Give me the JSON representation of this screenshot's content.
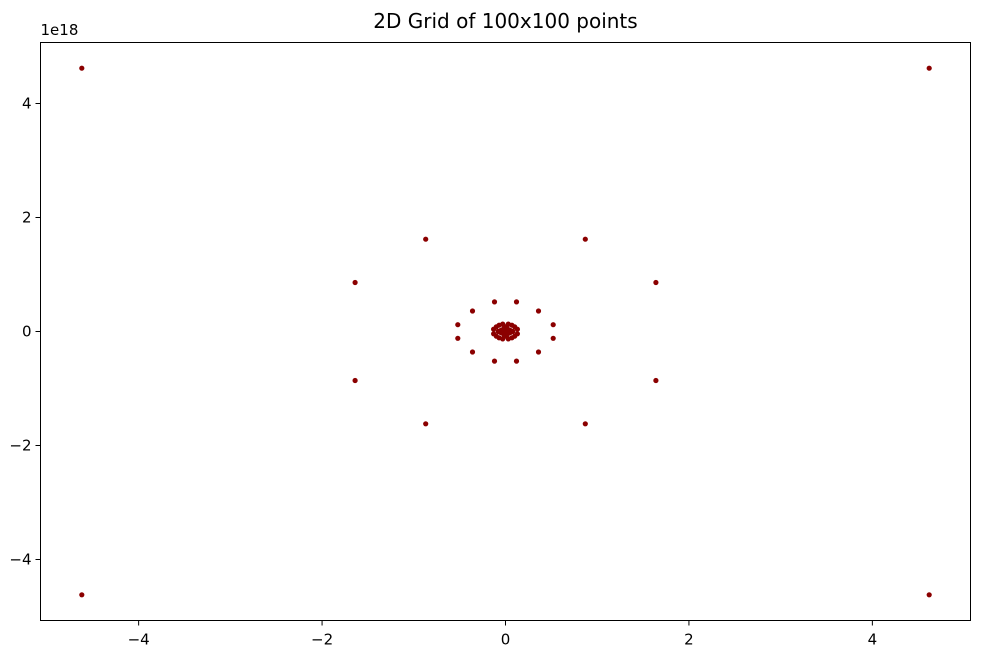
{
  "chart_data": {
    "type": "scatter",
    "title": "2D Grid of 100x100 points",
    "xlabel": "",
    "ylabel": "",
    "y_offset_label": "1e18",
    "xlim": [
      -5.07,
      5.07
    ],
    "ylim": [
      -5.07,
      5.07
    ],
    "x_ticks": [
      -4,
      -2,
      0,
      2,
      4
    ],
    "x_tick_labels": [
      "−4",
      "−2",
      "0",
      "2",
      "4"
    ],
    "y_ticks": [
      -4,
      -2,
      0,
      2,
      4
    ],
    "y_tick_labels": [
      "−4",
      "−2",
      "0",
      "2",
      "4"
    ],
    "grid": false,
    "marker_color": "#8b0000",
    "points": [
      [
        -4.62,
        4.62
      ],
      [
        4.62,
        4.62
      ],
      [
        -4.62,
        -4.62
      ],
      [
        4.62,
        -4.62
      ],
      [
        -0.87,
        1.62
      ],
      [
        0.87,
        1.62
      ],
      [
        -0.87,
        -1.62
      ],
      [
        0.87,
        -1.62
      ],
      [
        -1.64,
        0.86
      ],
      [
        1.64,
        0.86
      ],
      [
        -1.64,
        -0.86
      ],
      [
        1.64,
        -0.86
      ],
      [
        -0.12,
        0.52
      ],
      [
        0.12,
        0.52
      ],
      [
        -0.12,
        -0.52
      ],
      [
        0.12,
        -0.52
      ],
      [
        -0.36,
        0.36
      ],
      [
        0.36,
        0.36
      ],
      [
        -0.36,
        -0.36
      ],
      [
        0.36,
        -0.36
      ],
      [
        -0.52,
        0.12
      ],
      [
        0.52,
        0.12
      ],
      [
        -0.52,
        -0.12
      ],
      [
        0.52,
        -0.12
      ],
      [
        -0.13,
        0.04
      ],
      [
        0.13,
        0.04
      ],
      [
        -0.13,
        -0.04
      ],
      [
        0.13,
        -0.04
      ],
      [
        -0.1,
        0.08
      ],
      [
        0.1,
        0.08
      ],
      [
        -0.1,
        -0.08
      ],
      [
        0.1,
        -0.08
      ],
      [
        -0.07,
        0.11
      ],
      [
        0.07,
        0.11
      ],
      [
        -0.07,
        -0.11
      ],
      [
        0.07,
        -0.11
      ],
      [
        -0.03,
        0.13
      ],
      [
        0.03,
        0.13
      ],
      [
        -0.03,
        -0.13
      ],
      [
        0.03,
        -0.13
      ],
      [
        -0.05,
        0.02
      ],
      [
        0.05,
        0.02
      ],
      [
        -0.05,
        -0.02
      ],
      [
        0.05,
        -0.02
      ],
      [
        -0.02,
        0.05
      ],
      [
        0.02,
        0.05
      ],
      [
        -0.02,
        -0.05
      ],
      [
        0.02,
        -0.05
      ],
      [
        -0.08,
        0.0
      ],
      [
        0.08,
        0.0
      ],
      [
        0.0,
        0.08
      ],
      [
        0.0,
        -0.08
      ],
      [
        0.0,
        0.0
      ]
    ]
  }
}
